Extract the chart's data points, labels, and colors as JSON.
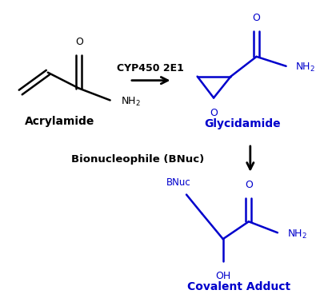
{
  "bg_color": "#ffffff",
  "black": "#000000",
  "blue": "#0000cc",
  "fig_width": 4.0,
  "fig_height": 3.73,
  "dpi": 100,
  "acrylamide_label": "Acrylamide",
  "glycidamide_label": "Glycidamide",
  "covalent_label": "Covalent Adduct",
  "cyp450_label": "CYP450 2E1",
  "bionuc_label": "Bionucleophile (BNuc)"
}
